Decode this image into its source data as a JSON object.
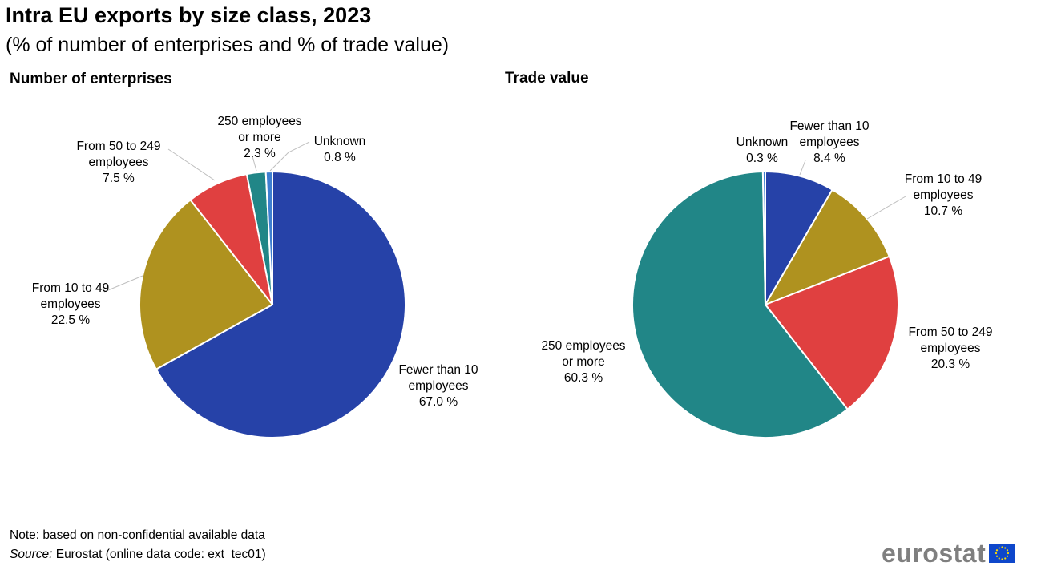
{
  "title": "Intra EU exports by size class, 2023",
  "subtitle": "(% of number of enterprises and % of trade value)",
  "note": "Note: based on non-confidential available data",
  "source_label": "Source:",
  "source_text": " Eurostat (online data code: ext_tec01)",
  "logo_text": "eurostat",
  "colors": {
    "fewer_than_10": "#2642a8",
    "from_10_to_49": "#af921f",
    "from_50_to_249": "#e04040",
    "over_250": "#218687",
    "unknown": "#3e7fd1",
    "leader_line": "#bfbfbf",
    "logo_gray": "#7f7f7f",
    "eu_blue": "#0e47cb",
    "eu_star": "#ffde00"
  },
  "chart_data": [
    {
      "type": "pie",
      "title": "Number of enterprises",
      "slices": [
        {
          "label": [
            "Fewer than 10",
            "employees",
            "67.0 %"
          ],
          "value": 67.0,
          "color_key": "fewer_than_10"
        },
        {
          "label": [
            "From 10 to 49",
            "employees",
            "22.5 %"
          ],
          "value": 22.5,
          "color_key": "from_10_to_49"
        },
        {
          "label": [
            "From 50 to 249",
            "employees",
            "7.5 %"
          ],
          "value": 7.5,
          "color_key": "from_50_to_249"
        },
        {
          "label": [
            "250 employees",
            "or more",
            "2.3 %"
          ],
          "value": 2.3,
          "color_key": "over_250"
        },
        {
          "label": [
            "Unknown",
            "0.8 %"
          ],
          "value": 0.8,
          "color_key": "unknown"
        }
      ]
    },
    {
      "type": "pie",
      "title": "Trade value",
      "slices": [
        {
          "label": [
            "Fewer than 10",
            "employees",
            "8.4 %"
          ],
          "value": 8.4,
          "color_key": "fewer_than_10"
        },
        {
          "label": [
            "From 10 to 49",
            "employees",
            "10.7 %"
          ],
          "value": 10.7,
          "color_key": "from_10_to_49"
        },
        {
          "label": [
            "From 50 to 249",
            "employees",
            "20.3 %"
          ],
          "value": 20.3,
          "color_key": "from_50_to_249"
        },
        {
          "label": [
            "250 employees",
            "or more",
            "60.3 %"
          ],
          "value": 60.3,
          "color_key": "over_250"
        },
        {
          "label": [
            "Unknown",
            "0.3 %"
          ],
          "value": 0.3,
          "color_key": "unknown"
        }
      ]
    }
  ]
}
